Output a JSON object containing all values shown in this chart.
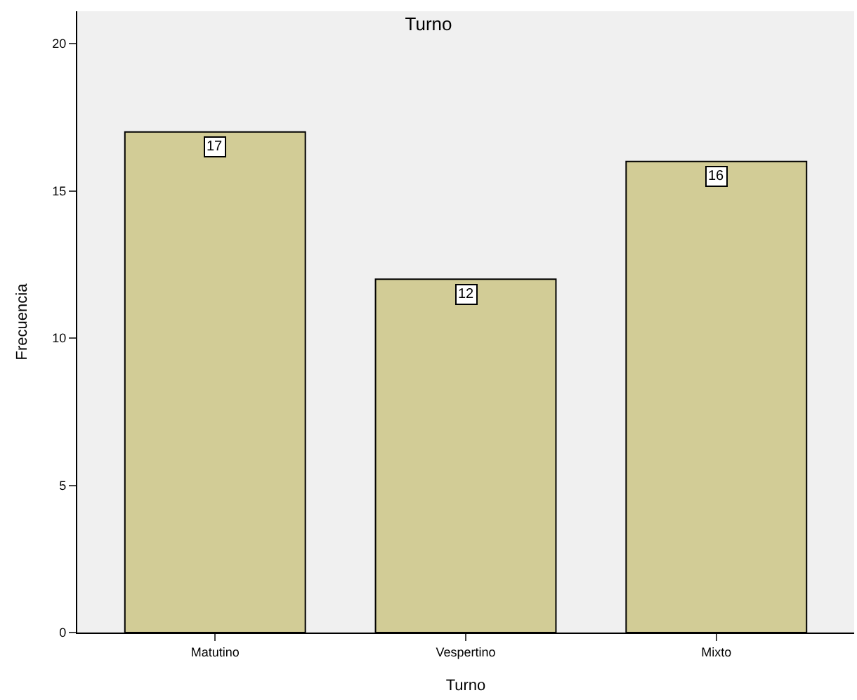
{
  "chart_data": {
    "type": "bar",
    "title": "Turno",
    "xlabel": "Turno",
    "ylabel": "Frecuencia",
    "categories": [
      "Matutino",
      "Vespertino",
      "Mixto"
    ],
    "values": [
      17,
      12,
      16
    ],
    "color": "#d2cc96",
    "ylim": [
      0,
      21.1
    ],
    "yticks": [
      0,
      5,
      10,
      15,
      20
    ],
    "grid": false,
    "data_labels": true
  }
}
